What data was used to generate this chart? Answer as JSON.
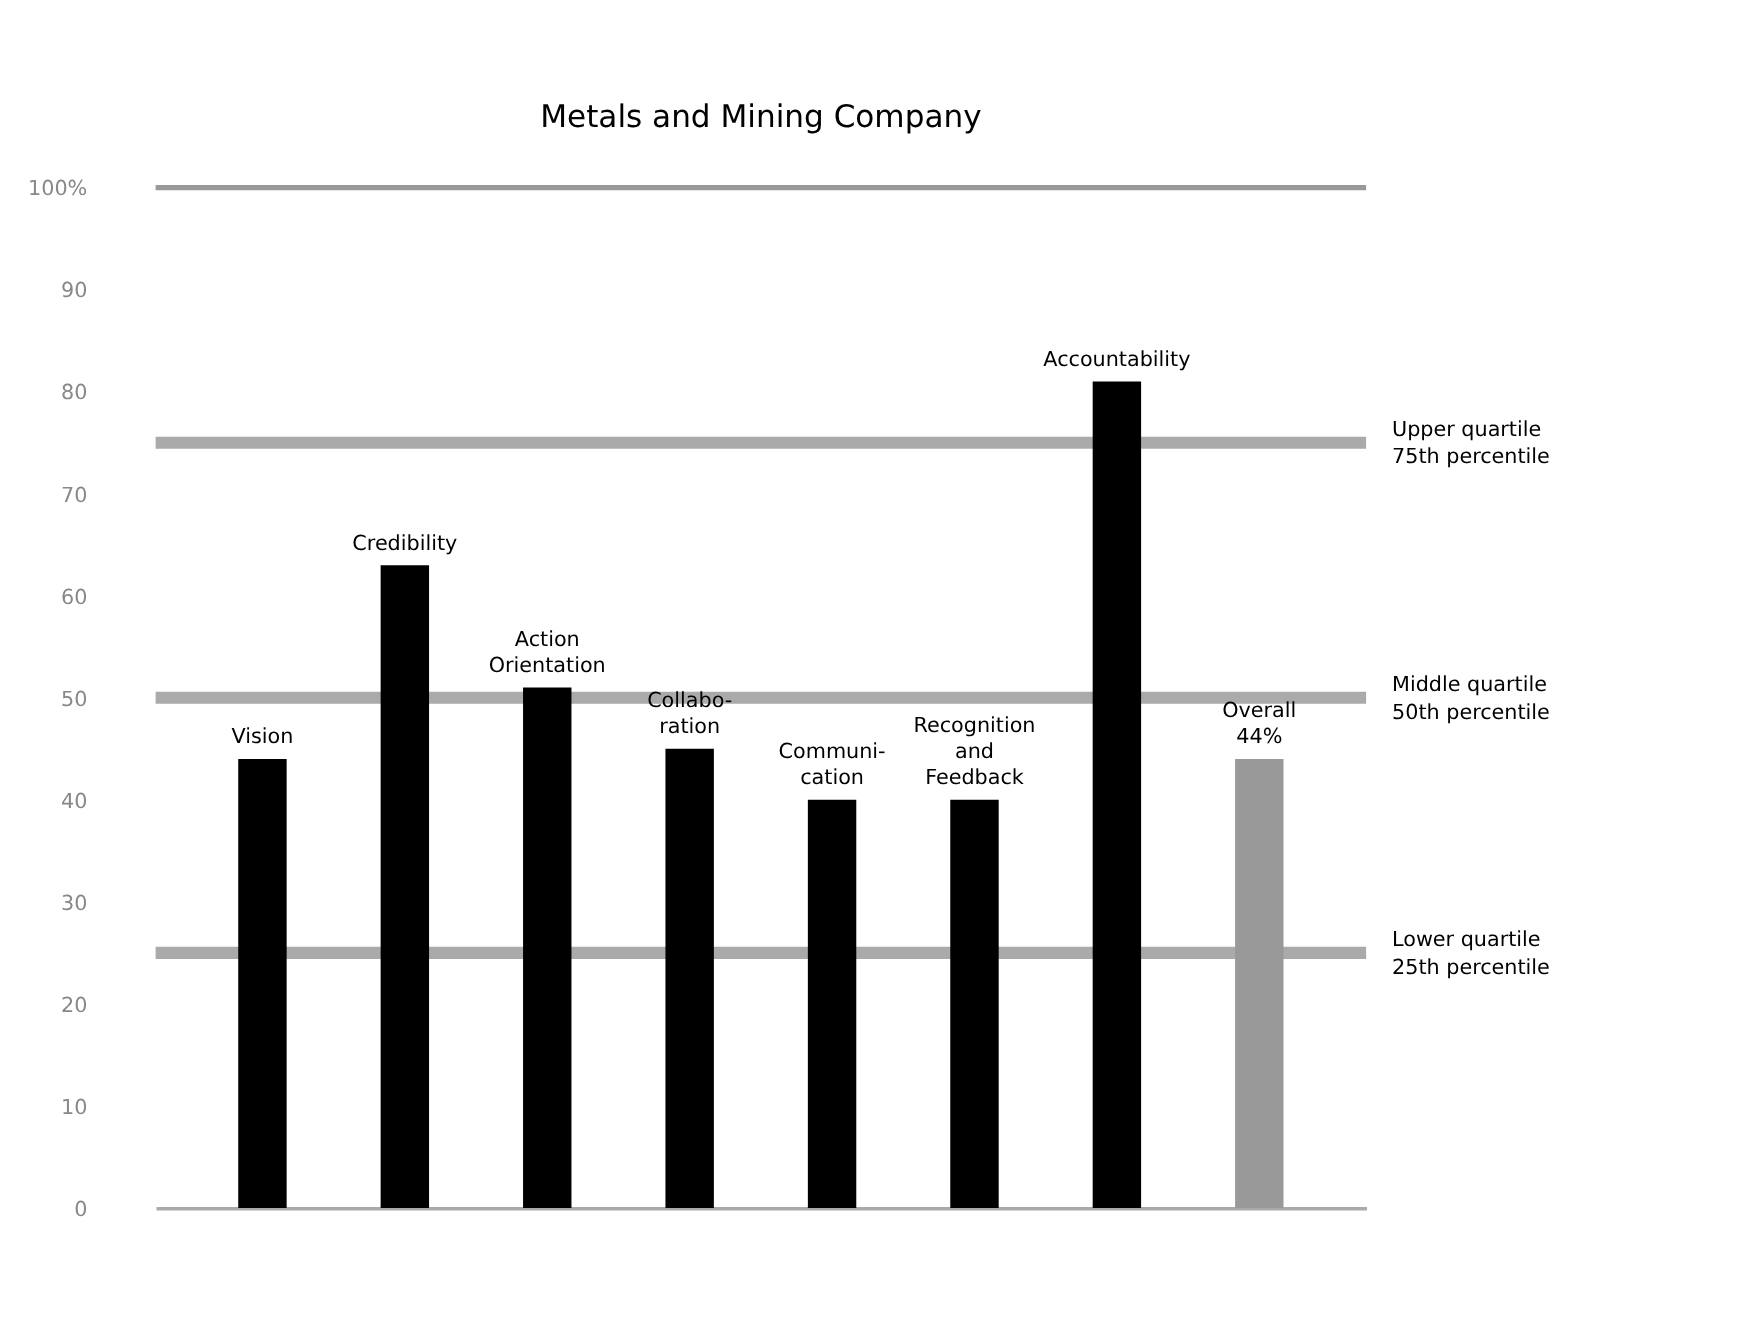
{
  "chart_data": {
    "type": "bar",
    "title": "Metals and Mining Company",
    "categories": [
      "Vision",
      "Credibility",
      "Action\nOrientation",
      "Collabo-\nration",
      "Communi-\ncation",
      "Recognition\nand\nFeedback",
      "Accountability",
      "Overall"
    ],
    "values": [
      44,
      63,
      51,
      45,
      40,
      40,
      81,
      44
    ],
    "colors": [
      "#000000",
      "#000000",
      "#000000",
      "#000000",
      "#000000",
      "#000000",
      "#000000",
      "#999999"
    ],
    "value_labels": [
      null,
      null,
      null,
      null,
      null,
      null,
      null,
      "44%"
    ],
    "ylim": [
      0,
      100
    ],
    "yticks": [
      0,
      10,
      20,
      30,
      40,
      50,
      60,
      70,
      80,
      90,
      {
        "value": 100,
        "label": "100%"
      }
    ],
    "ref_lines": [
      {
        "axis": "y",
        "value": 25,
        "label": "Lower quartile\n25th percentile",
        "color": "#aaaaaa"
      },
      {
        "axis": "y",
        "value": 50,
        "label": "Middle quartile\n50th percentile",
        "color": "#aaaaaa"
      },
      {
        "axis": "y",
        "value": 75,
        "label": "Upper quartile\n75th percentile",
        "color": "#aaaaaa"
      },
      {
        "axis": "y",
        "value": 100,
        "color": "#999999"
      }
    ],
    "grid": false
  }
}
